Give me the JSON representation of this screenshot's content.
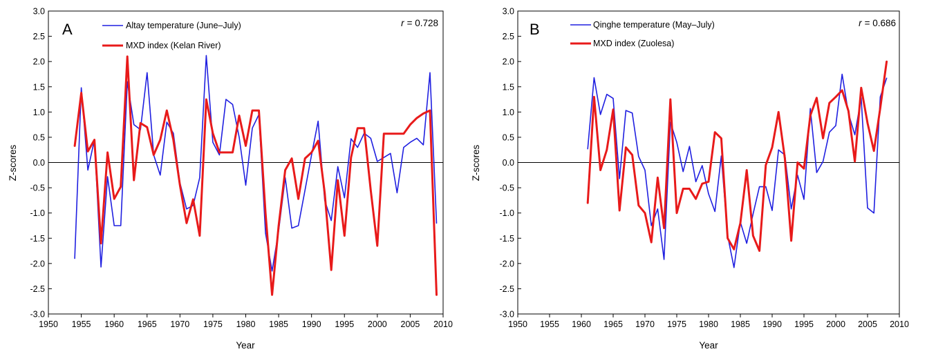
{
  "chart_data": [
    {
      "type": "line",
      "panel_label": "A",
      "annotation_r_symbol": "r",
      "annotation_r_value": "= 0.728",
      "xlabel": "Year",
      "ylabel": "Z-scores",
      "xlim": [
        1950,
        2010
      ],
      "ylim": [
        -3.0,
        3.0
      ],
      "xticks": [
        1950,
        1955,
        1960,
        1965,
        1970,
        1975,
        1980,
        1985,
        1990,
        1995,
        2000,
        2005,
        2010
      ],
      "yticks": [
        3.0,
        2.5,
        2.0,
        1.5,
        1.0,
        0.5,
        0.0,
        -0.5,
        -1.0,
        -1.5,
        -2.0,
        -2.5,
        -3.0
      ],
      "ytick_labels": [
        "3.0",
        "2.5",
        "2.0",
        "1.5",
        "1.0",
        "0.5",
        "0.0",
        "-0.5",
        "-1.0",
        "-1.5",
        "-2.0",
        "-2.5",
        "-3.0"
      ],
      "zero_line": true,
      "grid": false,
      "legend_position": "top-left",
      "series": [
        {
          "name": "Altay temperature (June–July)",
          "color": "#1f1fe0",
          "x": [
            1954,
            1955,
            1956,
            1957,
            1958,
            1959,
            1960,
            1961,
            1962,
            1963,
            1964,
            1965,
            1966,
            1967,
            1968,
            1969,
            1970,
            1971,
            1972,
            1973,
            1974,
            1975,
            1976,
            1977,
            1978,
            1979,
            1980,
            1981,
            1982,
            1983,
            1984,
            1985,
            1986,
            1987,
            1988,
            1989,
            1990,
            1991,
            1992,
            1993,
            1994,
            1995,
            1996,
            1997,
            1998,
            1999,
            2000,
            2001,
            2002,
            2003,
            2004,
            2005,
            2006,
            2007,
            2008,
            2009
          ],
          "y": [
            -1.9,
            1.48,
            -0.15,
            0.45,
            -2.07,
            -0.28,
            -1.25,
            -1.25,
            1.6,
            0.75,
            0.65,
            1.78,
            0.15,
            -0.25,
            0.8,
            0.58,
            -0.4,
            -0.92,
            -0.85,
            -0.3,
            2.12,
            0.4,
            0.15,
            1.25,
            1.15,
            0.5,
            -0.45,
            0.68,
            0.95,
            -1.4,
            -2.15,
            -1.35,
            -0.3,
            -1.3,
            -1.25,
            -0.55,
            0.15,
            0.82,
            -0.75,
            -1.15,
            -0.08,
            -0.7,
            0.47,
            0.3,
            0.58,
            0.48,
            0.02,
            0.1,
            0.18,
            -0.6,
            0.3,
            0.4,
            0.48,
            0.35,
            1.78,
            -1.2
          ]
        },
        {
          "name": "MXD index (Kelan River)",
          "color": "#e81a1a",
          "x": [
            1954,
            1955,
            1956,
            1957,
            1958,
            1959,
            1960,
            1961,
            1962,
            1963,
            1964,
            1965,
            1966,
            1967,
            1968,
            1969,
            1970,
            1971,
            1972,
            1973,
            1974,
            1975,
            1976,
            1977,
            1978,
            1979,
            1980,
            1981,
            1982,
            1983,
            1984,
            1985,
            1986,
            1987,
            1988,
            1989,
            1990,
            1991,
            1992,
            1993,
            1994,
            1995,
            1996,
            1997,
            1998,
            1999,
            2000,
            2001,
            2002,
            2003,
            2004,
            2005,
            2006,
            2007,
            2008,
            2009
          ],
          "y": [
            0.33,
            1.38,
            0.22,
            0.45,
            -1.6,
            0.2,
            -0.72,
            -0.48,
            2.1,
            -0.35,
            0.78,
            0.7,
            0.15,
            0.45,
            1.03,
            0.45,
            -0.45,
            -1.2,
            -0.73,
            -1.45,
            1.25,
            0.58,
            0.2,
            0.2,
            0.2,
            0.93,
            0.33,
            1.03,
            1.03,
            -1.0,
            -2.62,
            -1.25,
            -0.15,
            0.08,
            -0.72,
            0.08,
            0.2,
            0.43,
            -0.6,
            -2.13,
            -0.35,
            -1.45,
            0.1,
            0.68,
            0.68,
            -0.55,
            -1.65,
            0.57,
            0.57,
            0.57,
            0.57,
            0.75,
            0.88,
            0.97,
            1.03,
            -2.62
          ]
        }
      ]
    },
    {
      "type": "line",
      "panel_label": "B",
      "annotation_r_symbol": "r",
      "annotation_r_value": "= 0.686",
      "xlabel": "Year",
      "ylabel": "Z-scores",
      "xlim": [
        1950,
        2010
      ],
      "ylim": [
        -3.0,
        3.0
      ],
      "xticks": [
        1950,
        1955,
        1960,
        1965,
        1970,
        1975,
        1980,
        1985,
        1990,
        1995,
        2000,
        2005,
        2010
      ],
      "yticks": [
        3.0,
        2.5,
        2.0,
        1.5,
        1.0,
        0.5,
        0.0,
        -0.5,
        -1.0,
        -1.5,
        -2.0,
        -2.5,
        -3.0
      ],
      "ytick_labels": [
        "3.0",
        "2.5",
        "2.0",
        "1.5",
        "1.0",
        "0.5",
        "0.0",
        "-0.5",
        "-1.0",
        "-1.5",
        "-2.0",
        "-2.5",
        "-3.0"
      ],
      "zero_line": true,
      "grid": false,
      "legend_position": "top-left",
      "series": [
        {
          "name": "Qinghe temperature (May–July)",
          "color": "#1f1fe0",
          "x": [
            1961,
            1962,
            1963,
            1964,
            1965,
            1966,
            1967,
            1968,
            1969,
            1970,
            1971,
            1972,
            1973,
            1974,
            1975,
            1976,
            1977,
            1978,
            1979,
            1980,
            1981,
            1982,
            1983,
            1984,
            1985,
            1986,
            1987,
            1988,
            1989,
            1990,
            1991,
            1992,
            1993,
            1994,
            1995,
            1996,
            1997,
            1998,
            1999,
            2000,
            2001,
            2002,
            2003,
            2004,
            2005,
            2006,
            2007,
            2008
          ],
          "y": [
            0.27,
            1.68,
            0.95,
            1.35,
            1.27,
            -0.32,
            1.03,
            0.98,
            0.12,
            -0.15,
            -1.25,
            -0.92,
            -1.92,
            0.8,
            0.4,
            -0.18,
            0.32,
            -0.38,
            -0.06,
            -0.62,
            -0.97,
            0.13,
            -1.45,
            -2.08,
            -1.18,
            -1.6,
            -1.02,
            -0.48,
            -0.48,
            -0.95,
            0.25,
            0.15,
            -0.92,
            -0.25,
            -0.73,
            1.07,
            -0.2,
            0.02,
            0.6,
            0.73,
            1.75,
            0.97,
            0.55,
            1.28,
            -0.9,
            -1.0,
            1.3,
            1.67
          ]
        },
        {
          "name": "MXD index (Zuolesa)",
          "color": "#e81a1a",
          "x": [
            1961,
            1962,
            1963,
            1964,
            1965,
            1966,
            1967,
            1968,
            1969,
            1970,
            1971,
            1972,
            1973,
            1974,
            1975,
            1976,
            1977,
            1978,
            1979,
            1980,
            1981,
            1982,
            1983,
            1984,
            1985,
            1986,
            1987,
            1988,
            1989,
            1990,
            1991,
            1992,
            1993,
            1994,
            1995,
            1996,
            1997,
            1998,
            1999,
            2000,
            2001,
            2002,
            2003,
            2004,
            2005,
            2006,
            2007,
            2008
          ],
          "y": [
            -0.8,
            1.3,
            -0.15,
            0.25,
            1.05,
            -0.95,
            0.3,
            0.15,
            -0.85,
            -1.0,
            -1.58,
            -0.3,
            -1.3,
            1.25,
            -1.0,
            -0.52,
            -0.52,
            -0.72,
            -0.42,
            -0.38,
            0.6,
            0.48,
            -1.5,
            -1.72,
            -1.2,
            -0.15,
            -1.45,
            -1.75,
            -0.05,
            0.3,
            1.0,
            0.08,
            -1.55,
            0.0,
            -0.12,
            0.93,
            1.28,
            0.48,
            1.18,
            1.3,
            1.43,
            1.02,
            0.02,
            1.48,
            0.78,
            0.23,
            1.08,
            2.0
          ]
        }
      ]
    }
  ]
}
